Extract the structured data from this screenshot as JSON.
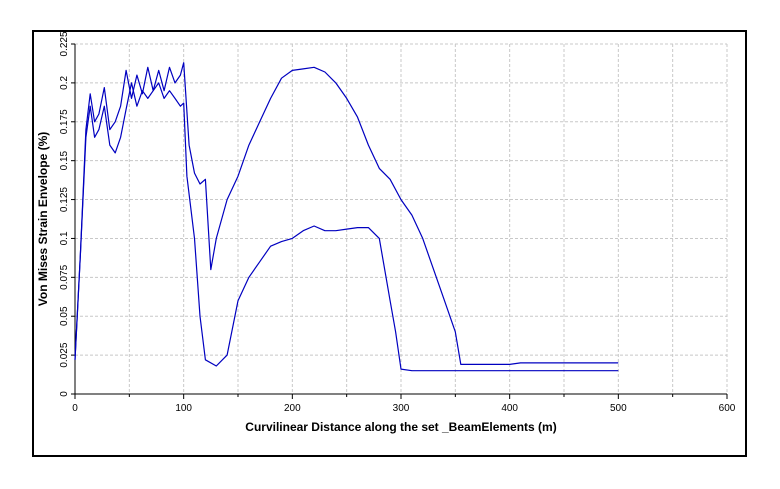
{
  "chart_data": {
    "type": "line",
    "title": "",
    "xlabel": "Curvilinear Distance along the set _BeamElements (m)",
    "ylabel": "Von Mises Strain Envelope (%)",
    "xlim": [
      0,
      600
    ],
    "ylim": [
      0,
      0.225
    ],
    "xticks": [
      0,
      100,
      200,
      300,
      400,
      500,
      600
    ],
    "yticks": [
      0,
      0.025,
      0.05,
      0.075,
      0.1,
      0.125,
      0.15,
      0.175,
      0.2,
      0.225
    ],
    "grid": true,
    "line_color": "#0000c0",
    "series": [
      {
        "x": [
          0,
          5,
          10,
          14,
          18,
          22,
          27,
          32,
          37,
          42,
          47,
          52,
          57,
          62,
          67,
          72,
          77,
          82,
          87,
          92,
          97,
          100,
          105,
          110,
          115,
          120,
          125,
          130,
          140,
          150,
          160,
          170,
          180,
          190,
          200,
          210,
          220,
          230,
          240,
          250,
          260,
          270,
          280,
          290,
          300,
          310,
          320,
          330,
          340,
          350,
          355,
          400,
          410,
          500
        ],
        "y": [
          0.022,
          0.09,
          0.17,
          0.193,
          0.175,
          0.18,
          0.197,
          0.17,
          0.175,
          0.185,
          0.208,
          0.19,
          0.205,
          0.193,
          0.21,
          0.195,
          0.208,
          0.195,
          0.21,
          0.2,
          0.205,
          0.213,
          0.16,
          0.142,
          0.135,
          0.138,
          0.08,
          0.1,
          0.125,
          0.14,
          0.16,
          0.175,
          0.19,
          0.203,
          0.208,
          0.209,
          0.21,
          0.207,
          0.2,
          0.19,
          0.178,
          0.16,
          0.145,
          0.138,
          0.125,
          0.115,
          0.1,
          0.08,
          0.06,
          0.04,
          0.019,
          0.019,
          0.02,
          0.02
        ]
      },
      {
        "x": [
          0,
          5,
          10,
          14,
          18,
          22,
          27,
          32,
          37,
          42,
          47,
          52,
          57,
          62,
          67,
          72,
          77,
          82,
          87,
          92,
          97,
          100,
          103,
          110,
          115,
          120,
          130,
          140,
          150,
          160,
          170,
          180,
          190,
          200,
          210,
          220,
          230,
          240,
          250,
          260,
          270,
          280,
          290,
          295,
          300,
          310,
          400,
          500
        ],
        "y": [
          0.022,
          0.09,
          0.165,
          0.185,
          0.165,
          0.17,
          0.185,
          0.16,
          0.155,
          0.165,
          0.183,
          0.2,
          0.185,
          0.195,
          0.19,
          0.195,
          0.2,
          0.19,
          0.195,
          0.19,
          0.185,
          0.187,
          0.14,
          0.1,
          0.05,
          0.022,
          0.018,
          0.025,
          0.06,
          0.075,
          0.085,
          0.095,
          0.098,
          0.1,
          0.105,
          0.108,
          0.105,
          0.105,
          0.106,
          0.107,
          0.107,
          0.1,
          0.06,
          0.04,
          0.016,
          0.015,
          0.015,
          0.015
        ]
      }
    ]
  }
}
